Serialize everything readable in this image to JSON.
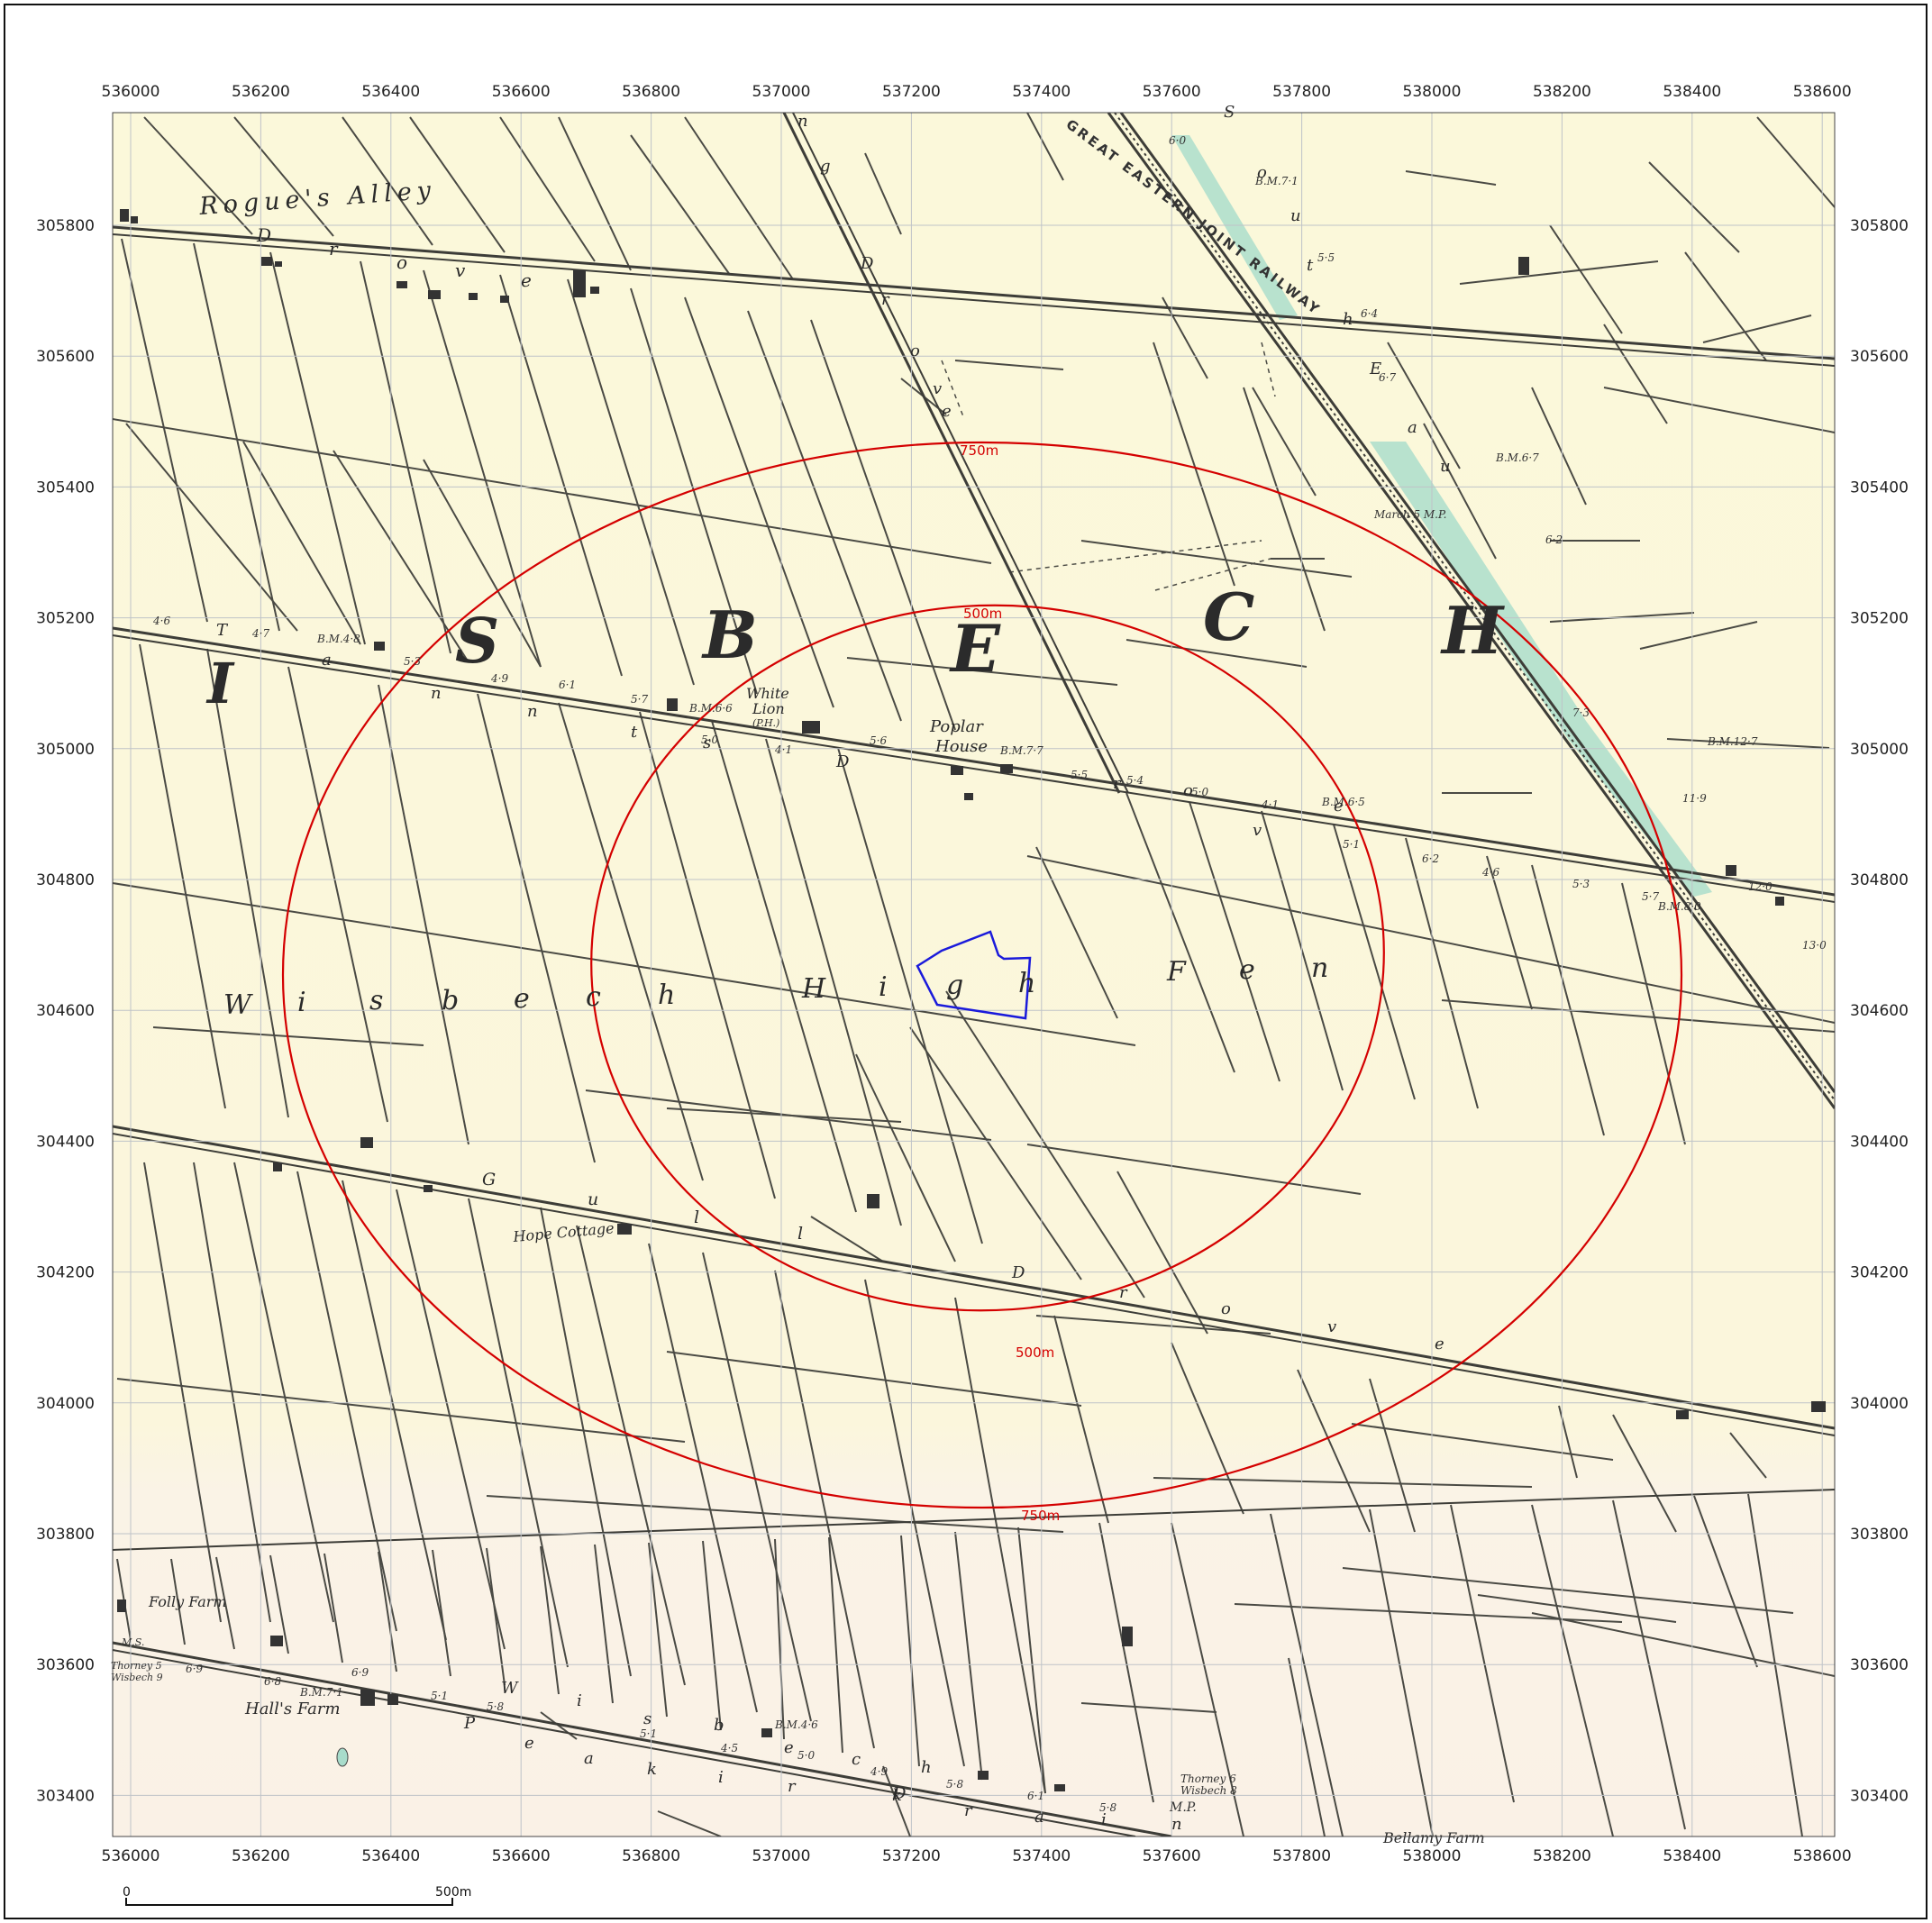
{
  "map": {
    "grid_x_labels": [
      "536000",
      "536200",
      "536400",
      "536600",
      "536800",
      "537000",
      "537200",
      "537400",
      "537600",
      "537800",
      "538000",
      "538200",
      "538400",
      "538600"
    ],
    "grid_y_labels": [
      "305800",
      "305600",
      "305400",
      "305200",
      "305000",
      "304800",
      "304600",
      "304400",
      "304200",
      "304000",
      "303800",
      "303600",
      "303400"
    ],
    "colors": {
      "paper": "#fbf7dc",
      "paper_south": "#fbf3e4",
      "lines": "#4a4a44",
      "grid": "#bfc3c8",
      "buffer_rings": "#d40000",
      "site_boundary": "#1a1adb",
      "railway_fill": "#a8dccb"
    },
    "buffers": {
      "inner_label": "500m",
      "outer_label": "750m"
    },
    "site": {
      "label": ""
    },
    "place_names": {
      "rogues_alley": "Rogue's Alley",
      "white_lion": "White",
      "white_lion_2": "Lion",
      "white_lion_3": "(P.H.)",
      "poplar_house": "Poplar",
      "poplar_house_2": "House",
      "hope_cottage": "Hope Cottage",
      "folly_farm": "Folly Farm",
      "halls_farm": "Hall's Farm",
      "railway": "GREAT EASTERN JOINT RAILWAY",
      "thorney_mp": "Thorney 5",
      "thorney_mp_2": "Wisbech 9",
      "thorney_mp_3": "Thorney 6",
      "thorney_mp_4": "Wisbech 8",
      "march_mp": "March 5 M.P.",
      "mp_label": "M.P.",
      "ms_label": "M.S."
    },
    "area_letters": [
      "I",
      "S",
      "B",
      "E",
      "C",
      "H"
    ],
    "fen_letters": [
      "W",
      "i",
      "s",
      "b",
      "e",
      "c",
      "h",
      "H",
      "i",
      "g",
      "h",
      "F",
      "e",
      "n"
    ],
    "spot_heights": {
      "h1": "4·6",
      "h2": "4·7",
      "h3": "B.M.4·8",
      "h4": "5·3",
      "h5": "4·9",
      "h6": "6·1",
      "h7": "5·7",
      "h8": "B.M.6·6",
      "h9": "5·0",
      "h10": "4·1",
      "h11": "5·6",
      "h12": "B.M.7·7",
      "h13": "5·5",
      "h14": "5·4",
      "h15": "5·0",
      "h16": "4·1",
      "h17": "B.M.6·5",
      "h18": "5·1",
      "h19": "6·2",
      "h20": "4·6",
      "h21": "5·3",
      "h22": "5·7",
      "h23": "B.M.8·0",
      "h24": "12·0",
      "h25": "13·0",
      "h26": "11·9",
      "h27": "7·3",
      "h28": "B.M.12·7",
      "h29": "6·2",
      "h30": "B.M.6·7",
      "h31": "6·7",
      "h32": "6·4",
      "h33": "5·5",
      "h34": "B.M.7·1",
      "h35": "6·0",
      "h36": "6·9",
      "h37": "6·8",
      "h38": "B.M.7·1",
      "h39": "6·9",
      "h40": "5·1",
      "h41": "5·8",
      "h42": "5·1",
      "h43": "4·5",
      "h44": "B.M.4·6",
      "h45": "5·0",
      "h46": "4·9",
      "h47": "5·8",
      "h48": "6·1",
      "h49": "5·8"
    },
    "road_letters": {
      "drove_top": [
        "D",
        "r",
        "o",
        "v",
        "e"
      ],
      "drove_vertical": [
        "D",
        "r",
        "o",
        "v",
        "e"
      ],
      "drain_vertical": [
        "n",
        "g"
      ],
      "south_drain": [
        "S",
        "o",
        "u",
        "t",
        "h",
        "E",
        "a",
        "u"
      ],
      "tanns": [
        "T",
        "a",
        "n",
        "n",
        "t",
        "s"
      ],
      "drove_middle": [
        "D",
        "r",
        "o",
        "v",
        "e"
      ],
      "gull": [
        "G",
        "u",
        "l",
        "l"
      ],
      "drove_lower": [
        "D",
        "r",
        "o",
        "v",
        "e"
      ],
      "wisbech_lower": [
        "W",
        "i",
        "s",
        "b",
        "e",
        "c",
        "h"
      ],
      "peakirk": [
        "P",
        "e",
        "a",
        "k",
        "i",
        "r",
        "k"
      ],
      "drain_lower": [
        "D",
        "r",
        "a",
        "i",
        "n"
      ],
      "farm_bottom": "Bellamy Farm"
    },
    "scale_bar": {
      "start": "0",
      "end": "500m"
    }
  }
}
